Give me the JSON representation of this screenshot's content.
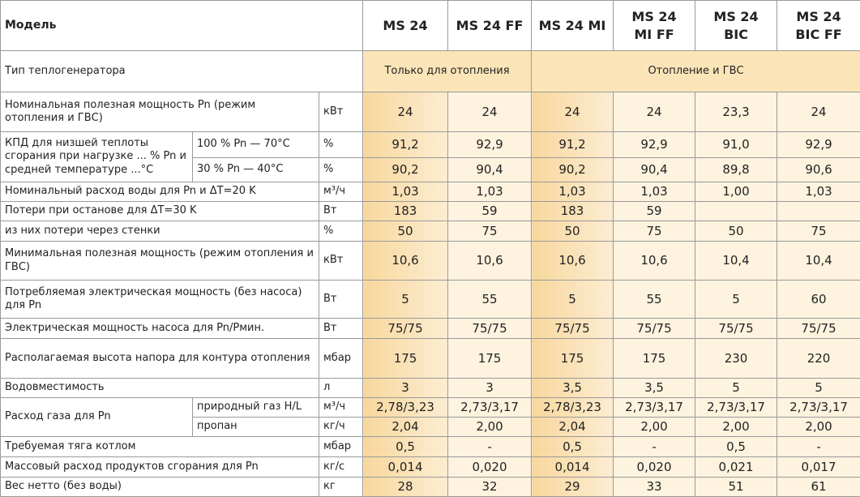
{
  "header": {
    "label": "Модель",
    "models": [
      "MS 24",
      "MS 24 FF",
      "MS 24 MI",
      "MS 24\nMI FF",
      "MS 24\nBIC",
      "MS 24\nBIC FF"
    ]
  },
  "rows": [
    {
      "label": "Тип теплогенератора",
      "groups": [
        "Только для отопления",
        "Отопление и ГВС"
      ]
    },
    {
      "label": "Номинальная полезная мощность Pn (режим отопления и  ГВС)",
      "unit": "кВт",
      "values": [
        "24",
        "24",
        "24",
        "24",
        "23,3",
        "24"
      ]
    },
    {
      "label": "КПД для низшей теплоты сгорания при нагрузке ... % Pn и средней температуре ...°C",
      "sub": [
        {
          "label": "100 % Pn — 70°C",
          "unit": "%",
          "values": [
            "91,2",
            "92,9",
            "91,2",
            "92,9",
            "91,0",
            "92,9"
          ]
        },
        {
          "label": "30 % Pn — 40°C",
          "unit": "%",
          "values": [
            "90,2",
            "90,4",
            "90,2",
            "90,4",
            "89,8",
            "90,6"
          ]
        }
      ]
    },
    {
      "label": "Номинальный расход воды для Pn и ΔT=20 K",
      "unit": "м³/ч",
      "values": [
        "1,03",
        "1,03",
        "1,03",
        "1,03",
        "1,00",
        "1,03"
      ]
    },
    {
      "label": "Потери при останове для ΔT=30 K",
      "unit": "Вт",
      "values": [
        "183",
        "59",
        "183",
        "59",
        null,
        null
      ]
    },
    {
      "label": "из них потери через стенки",
      "unit": "%",
      "values": [
        "50",
        "75",
        "50",
        "75",
        "50",
        "75"
      ]
    },
    {
      "label": "Минимальная полезная мощность (режим отопления и  ГВС)",
      "unit": "кВт",
      "values": [
        "10,6",
        "10,6",
        "10,6",
        "10,6",
        "10,4",
        "10,4"
      ]
    },
    {
      "label": "Потребляемая электрическая мощность (без насоса) для Pn",
      "unit": "Вт",
      "values": [
        "5",
        "55",
        "5",
        "55",
        "5",
        "60"
      ]
    },
    {
      "label": "Электрическая мощность насоса для Pn/Pмин.",
      "unit": "Вт",
      "values": [
        "75/75",
        "75/75",
        "75/75",
        "75/75",
        "75/75",
        "75/75"
      ]
    },
    {
      "label": "Располагаемая высота напора для контура отопления",
      "unit": "мбар",
      "values": [
        "175",
        "175",
        "175",
        "175",
        "230",
        "220"
      ]
    },
    {
      "label": "Водовместимость",
      "unit": "л",
      "values": [
        "3",
        "3",
        "3,5",
        "3,5",
        "5",
        "5"
      ]
    },
    {
      "label": "Расход газа для Pn",
      "sub": [
        {
          "label": "природный газ H/L",
          "unit": "м³/ч",
          "values": [
            "2,78/3,23",
            "2,73/3,17",
            "2,78/3,23",
            "2,73/3,17",
            "2,73/3,17",
            "2,73/3,17"
          ]
        },
        {
          "label": "пропан",
          "unit": "кг/ч",
          "values": [
            "2,04",
            "2,00",
            "2,04",
            "2,00",
            "2,00",
            "2,00"
          ]
        }
      ]
    },
    {
      "label": "Требуемая тяга котлом",
      "unit": "мбар",
      "values": [
        "0,5",
        "-",
        "0,5",
        "-",
        "0,5",
        "-"
      ]
    },
    {
      "label": "Массовый расход продуктов сгорания для Pn",
      "unit": "кг/с",
      "values": [
        "0,014",
        "0,020",
        "0,014",
        "0,020",
        "0,021",
        "0,017"
      ]
    },
    {
      "label": "Вес нетто (без воды)",
      "unit": "кг",
      "values": [
        "28",
        "32",
        "29",
        "33",
        "51",
        "61"
      ]
    }
  ]
}
